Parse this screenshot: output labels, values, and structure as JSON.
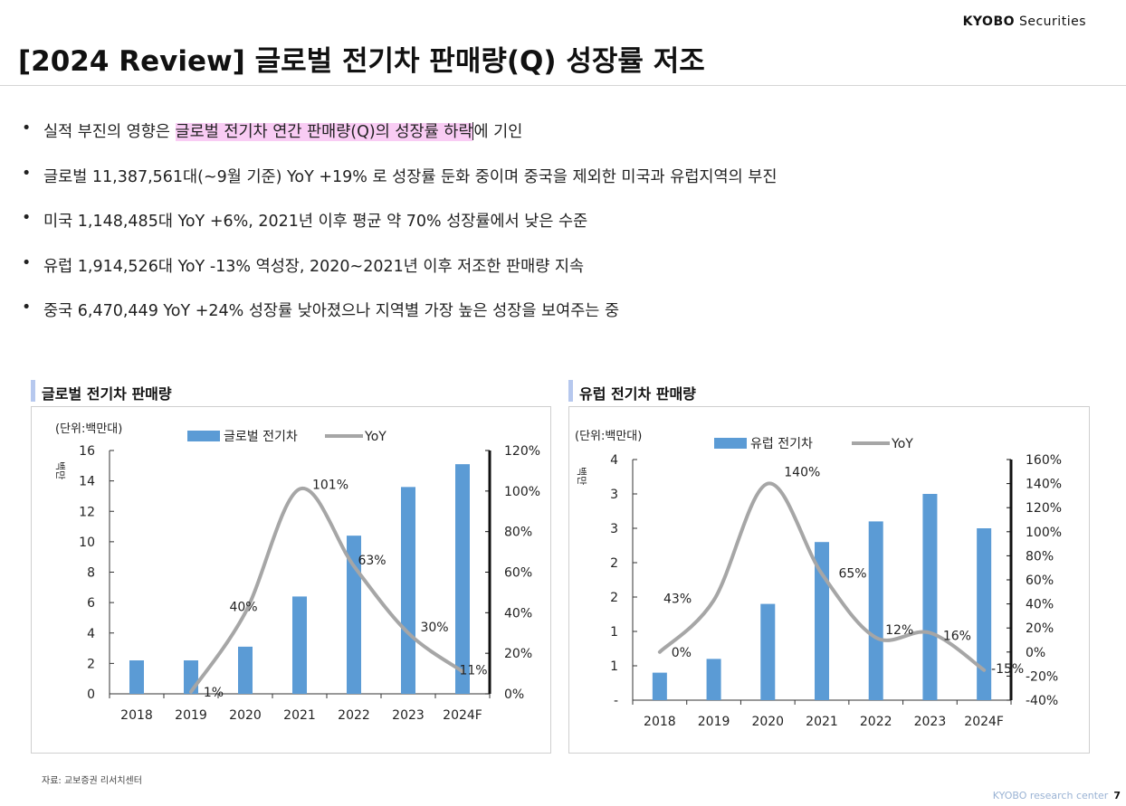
{
  "header": {
    "brand_bold": "KYOBO",
    "brand_light": "Securities",
    "title": "[2024 Review] 글로벌 전기차 판매량(Q) 성장률 저조"
  },
  "bullets": [
    {
      "pre": "실적 부진의 영향은 ",
      "highlight": "글로벌 전기차 연간 판매량(Q)의 성장률 하락",
      "post": "에 기인"
    },
    {
      "pre": "글로벌 11,387,561대(~9월 기준)  YoY +19% 로 성장률 둔화 중이며 중국을 제외한 미국과 유럽지역의 부진"
    },
    {
      "pre": "미국 1,148,485대 YoY +6%, 2021년 이후 평균 약 70% 성장률에서 낮은 수준"
    },
    {
      "pre": "유럽 1,914,526대 YoY -13% 역성장, 2020~2021년 이후 저조한 판매량 지속"
    },
    {
      "pre": "중국 6,470,449 YoY +24% 성장률 낮아졌으나 지역별 가장 높은 성장을 보여주는 중"
    }
  ],
  "panels": {
    "left_title": "글로벌 전기차 판매량",
    "right_title": "유럽 전기차 판매량"
  },
  "chart_data": [
    {
      "type": "bar",
      "categories": [
        "2018",
        "2019",
        "2020",
        "2021",
        "2022",
        "2023",
        "2024F"
      ],
      "unit_label": "(단위:백만대)",
      "y_side_label": "백만",
      "series": [
        {
          "name": "글로벌 전기차",
          "type": "bar",
          "axis": "left",
          "color": "#5b9bd5",
          "values": [
            2.2,
            2.2,
            3.1,
            6.4,
            10.4,
            13.6,
            15.1
          ]
        },
        {
          "name": "YoY",
          "type": "line",
          "axis": "right",
          "color": "#a6a6a6",
          "values": [
            null,
            1,
            40,
            101,
            63,
            30,
            11
          ],
          "labels": [
            "",
            "1%",
            "40%",
            "101%",
            "63%",
            "30%",
            "11%"
          ]
        }
      ],
      "ylim": [
        0,
        16
      ],
      "yticks": [
        "0",
        "2",
        "4",
        "6",
        "8",
        "10",
        "12",
        "14",
        "16"
      ],
      "y2lim": [
        0,
        120
      ],
      "y2ticks": [
        "0%",
        "20%",
        "40%",
        "60%",
        "80%",
        "100%",
        "120%"
      ],
      "legend_position": "top"
    },
    {
      "type": "bar",
      "categories": [
        "2018",
        "2019",
        "2020",
        "2021",
        "2022",
        "2023",
        "2024F"
      ],
      "unit_label": "(단위:백만대)",
      "y_side_label": "백만",
      "series": [
        {
          "name": "유럽 전기차",
          "type": "bar",
          "axis": "left",
          "color": "#5b9bd5",
          "values": [
            0.4,
            0.6,
            1.4,
            2.3,
            2.6,
            3.0,
            2.5
          ]
        },
        {
          "name": "YoY",
          "type": "line",
          "axis": "right",
          "color": "#a6a6a6",
          "values": [
            0,
            43,
            140,
            65,
            12,
            16,
            -15
          ],
          "labels": [
            "0%",
            "43%",
            "140%",
            "65%",
            "12%",
            "16%",
            "-15%"
          ]
        }
      ],
      "ylim": [
        0,
        3.5
      ],
      "yticks": [
        "-",
        "1",
        "1",
        "2",
        "2",
        "3",
        "3",
        "4"
      ],
      "y2lim": [
        -40,
        160
      ],
      "y2ticks": [
        "-40%",
        "-20%",
        "0%",
        "20%",
        "40%",
        "60%",
        "80%",
        "100%",
        "120%",
        "140%",
        "160%"
      ],
      "legend_position": "top"
    }
  ],
  "footer": {
    "source": "자료: 교보증권 리서치센터",
    "center": "KYOBO research center",
    "page": "7"
  }
}
